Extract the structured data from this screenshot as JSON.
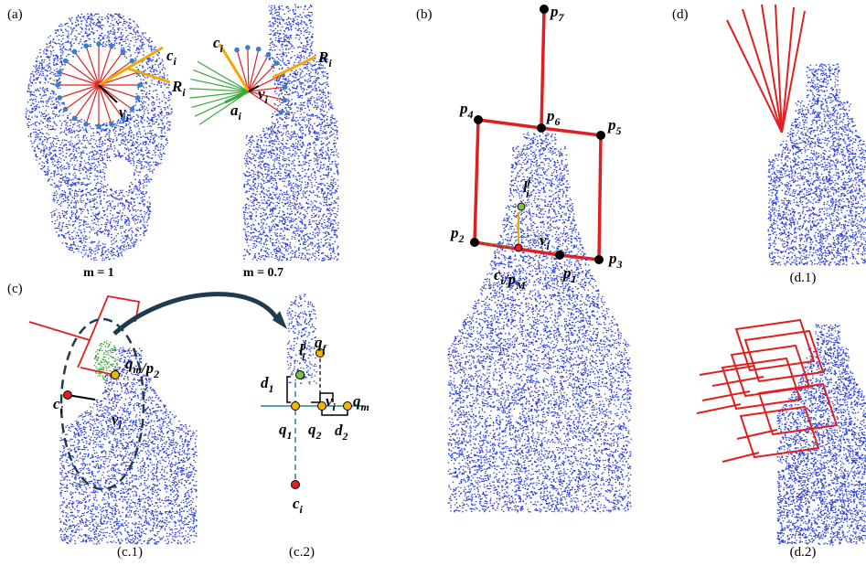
{
  "panels": {
    "a": {
      "tag": "(a)",
      "left_caption": "m = 1",
      "right_caption": "m = 0.7",
      "labels": [
        {
          "parts": [
            {
              "base": "c",
              "sub": "i"
            }
          ]
        },
        {
          "parts": [
            {
              "base": "R",
              "sub": "i"
            }
          ]
        },
        {
          "parts": [
            {
              "base": "v",
              "sub": "i"
            }
          ]
        },
        {
          "parts": [
            {
              "base": "c",
              "sub": "i"
            }
          ]
        },
        {
          "parts": [
            {
              "base": "R",
              "sub": "i"
            }
          ]
        },
        {
          "parts": [
            {
              "base": "v",
              "sub": "i"
            }
          ]
        },
        {
          "parts": [
            {
              "base": "a",
              "sub": "i"
            }
          ]
        }
      ]
    },
    "b": {
      "tag": "(b)",
      "labels": [
        {
          "parts": [
            {
              "base": "p",
              "sub": "7"
            }
          ]
        },
        {
          "parts": [
            {
              "base": "p",
              "sub": "6"
            }
          ]
        },
        {
          "parts": [
            {
              "base": "p",
              "sub": "4"
            }
          ]
        },
        {
          "parts": [
            {
              "base": "p",
              "sub": "5"
            }
          ]
        },
        {
          "parts": [
            {
              "base": "l",
              "sub": "i",
              "sup": "j"
            }
          ]
        },
        {
          "parts": [
            {
              "base": "v",
              "sub": "i"
            }
          ]
        },
        {
          "parts": [
            {
              "base": "p",
              "sub": "2"
            }
          ]
        },
        {
          "parts": [
            {
              "base": "p",
              "sub": "3"
            }
          ]
        },
        {
          "parts": [
            {
              "base": "c",
              "sub": "i"
            },
            {
              "base": "/p",
              "sub": "M"
            }
          ]
        },
        {
          "parts": [
            {
              "base": "p",
              "sub": "1"
            }
          ]
        }
      ]
    },
    "c": {
      "tag": "(c)",
      "left_caption": "(c.1)",
      "right_caption": "(c.2)",
      "labels": [
        {
          "parts": [
            {
              "base": "q",
              "sub": "m"
            },
            {
              "base": "/p",
              "sub": "2"
            }
          ]
        },
        {
          "parts": [
            {
              "base": "c",
              "sub": "i"
            }
          ]
        },
        {
          "parts": [
            {
              "base": "v",
              "sub": "i"
            }
          ]
        },
        {
          "parts": [
            {
              "base": "l",
              "sub": "i",
              "sup": "j"
            }
          ]
        },
        {
          "parts": [
            {
              "base": "q",
              "sub": "f"
            }
          ]
        },
        {
          "parts": [
            {
              "base": "d",
              "sub": "1"
            }
          ]
        },
        {
          "parts": [
            {
              "base": "v",
              "sub": "i"
            }
          ]
        },
        {
          "parts": [
            {
              "base": "q",
              "sub": "m"
            }
          ]
        },
        {
          "parts": [
            {
              "base": "q",
              "sub": "1"
            }
          ]
        },
        {
          "parts": [
            {
              "base": "q",
              "sub": "2"
            }
          ]
        },
        {
          "parts": [
            {
              "base": "d",
              "sub": "2"
            }
          ]
        },
        {
          "parts": [
            {
              "base": "c",
              "sub": "i"
            }
          ]
        }
      ]
    },
    "d": {
      "tag": "(d)",
      "top_caption": "(d.1)",
      "bottom_caption": "(d.2)"
    }
  }
}
